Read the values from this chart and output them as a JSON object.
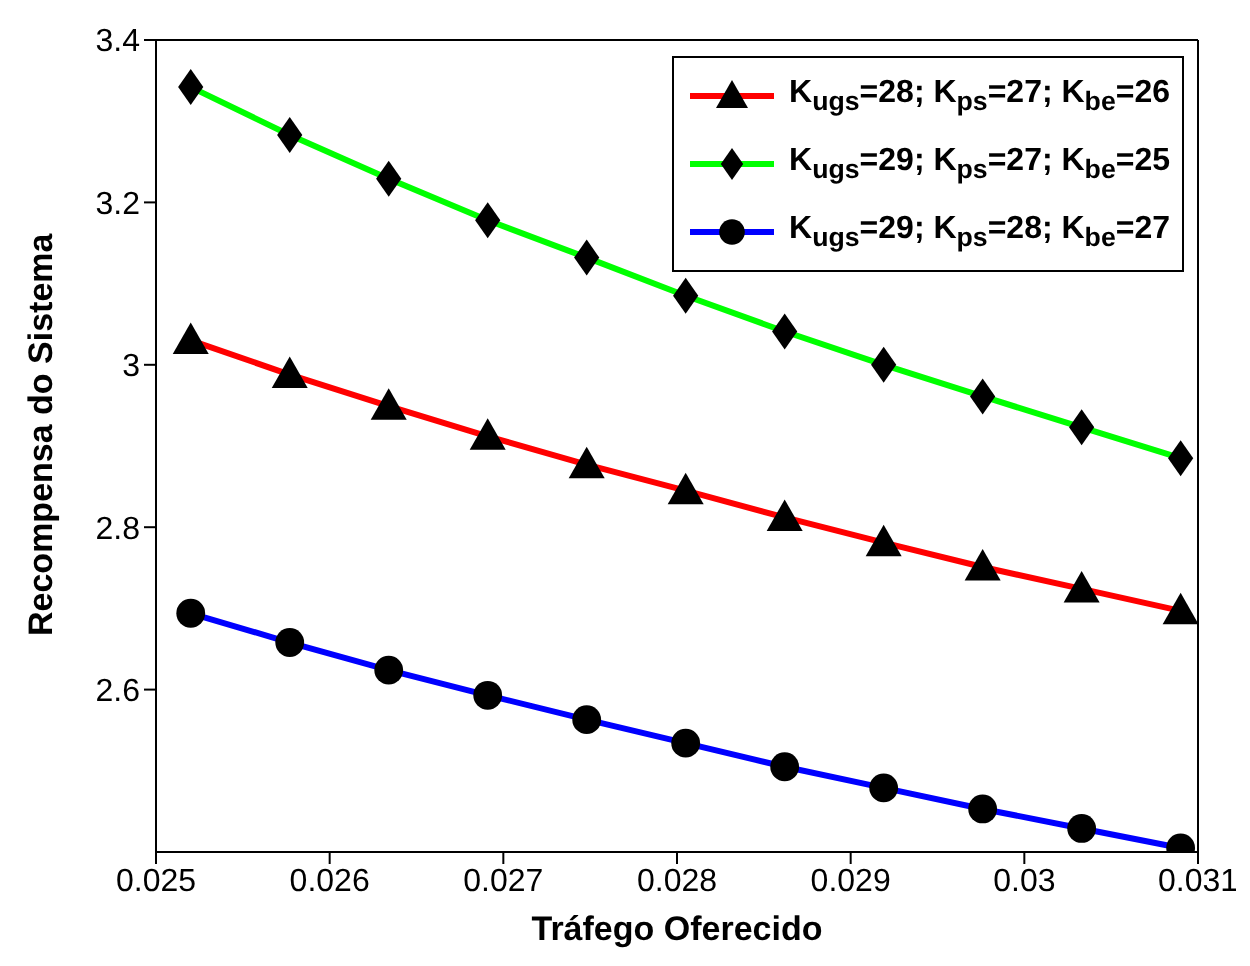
{
  "chart_data": {
    "type": "line",
    "xlabel": "Tráfego Oferecido",
    "ylabel": "Recompensa do Sistema",
    "x": [
      0.0252,
      0.02577,
      0.02634,
      0.02691,
      0.02748,
      0.02805,
      0.02862,
      0.02919,
      0.02976,
      0.03033,
      0.0309
    ],
    "series": [
      {
        "name": "K$_{ugs}$=28; K$_{ps}$=27; K$_{be}$=26",
        "color": "#ff0000",
        "marker": "triangle",
        "values": [
          3.03,
          2.988,
          2.949,
          2.912,
          2.877,
          2.845,
          2.812,
          2.781,
          2.751,
          2.724,
          2.697
        ]
      },
      {
        "name": "K$_{ugs}$=29; K$_{ps}$=27; K$_{be}$=25",
        "color": "#00ff00",
        "marker": "diamond",
        "values": [
          3.342,
          3.283,
          3.229,
          3.178,
          3.132,
          3.085,
          3.041,
          3.0,
          2.961,
          2.923,
          2.885
        ]
      },
      {
        "name": "K$_{ugs}$=29; K$_{ps}$=28; K$_{be}$=27",
        "color": "#0000ff",
        "marker": "circle",
        "values": [
          2.694,
          2.658,
          2.624,
          2.593,
          2.563,
          2.534,
          2.505,
          2.479,
          2.453,
          2.429,
          2.405
        ]
      }
    ],
    "xlim": [
      0.025,
      0.031
    ],
    "xticks": [
      0.025,
      0.026,
      0.027,
      0.028,
      0.029,
      0.03,
      0.031
    ],
    "ylim": [
      2.4,
      3.4
    ],
    "yticks": [
      2.6,
      2.8,
      3,
      3.2,
      3.4
    ],
    "legend": "top right",
    "grid": false,
    "line_style": "solid"
  }
}
